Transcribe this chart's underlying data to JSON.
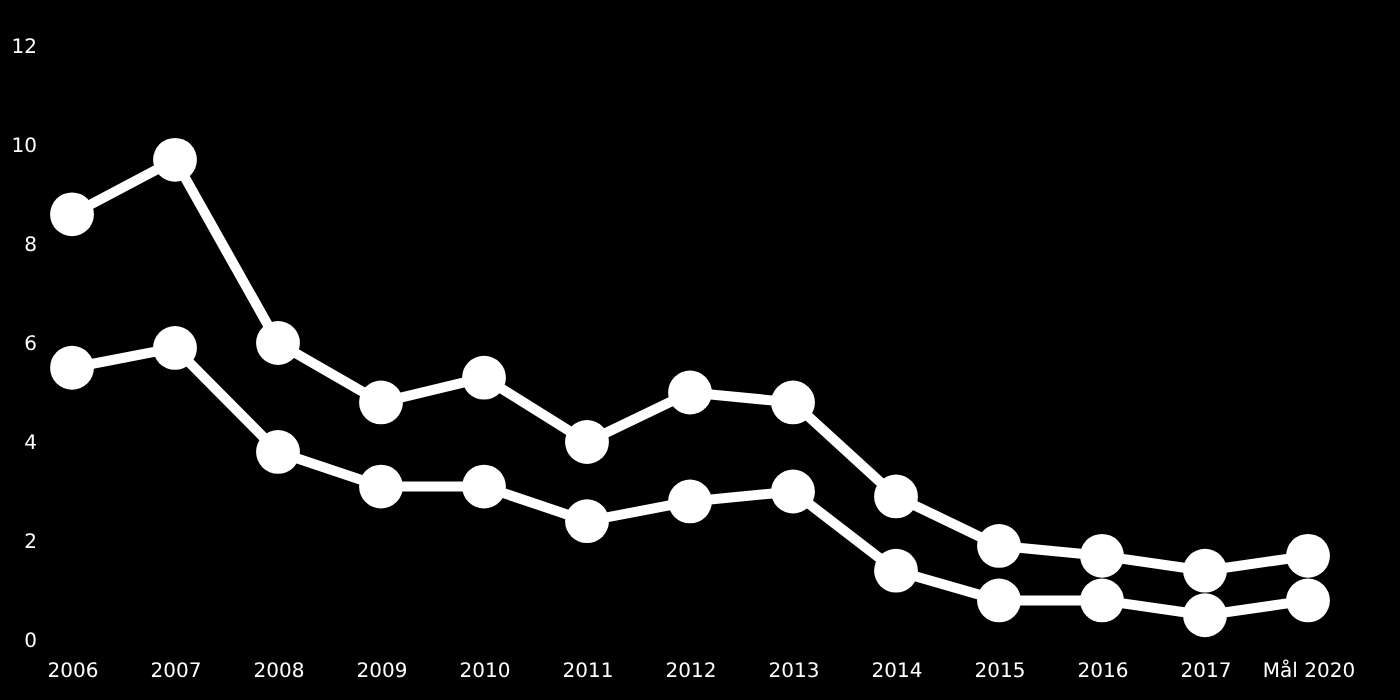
{
  "chart_data": {
    "type": "line",
    "categories": [
      "2006",
      "2007",
      "2008",
      "2009",
      "2010",
      "2011",
      "2012",
      "2013",
      "2014",
      "2015",
      "2016",
      "2017",
      "Mål 2020"
    ],
    "series": [
      {
        "color": "#ffffff",
        "values": [
          8.6,
          9.7,
          6.0,
          4.8,
          5.3,
          4.0,
          5.0,
          4.8,
          2.9,
          1.9,
          1.7,
          1.4,
          1.7
        ]
      },
      {
        "color": "#ffffff",
        "values": [
          5.5,
          5.9,
          3.8,
          3.1,
          3.1,
          2.4,
          2.8,
          3.0,
          1.4,
          0.8,
          0.8,
          0.5,
          0.8
        ]
      }
    ],
    "ylim": [
      0,
      12
    ],
    "yticks": [
      0,
      2,
      4,
      6,
      8,
      10,
      12
    ],
    "grid": false,
    "legend": false,
    "marker": "circle",
    "line_style": "solid"
  }
}
